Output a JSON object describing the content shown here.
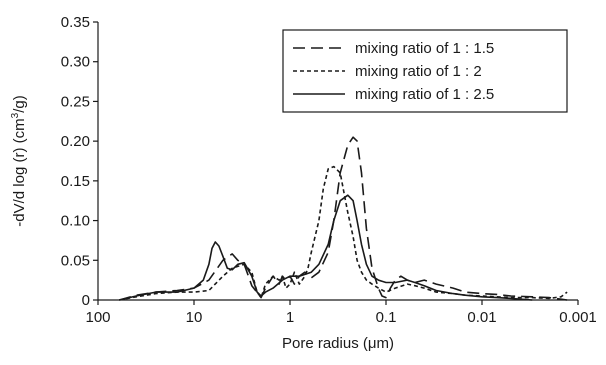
{
  "chart_data": {
    "type": "line",
    "title": "",
    "xlabel": "Pore radius (μm)",
    "ylabel": "-dV/d log (r) (cm³/g)",
    "ylabel_parts": {
      "prefix": "-dV/d log (r) (cm",
      "sup": "3",
      "suffix": "/g)"
    },
    "x_scale": "log",
    "x_reversed": true,
    "xlim": [
      100,
      0.001
    ],
    "ylim": [
      0,
      0.35
    ],
    "x_ticks": [
      100,
      10,
      1,
      0.1,
      0.01,
      0.001
    ],
    "x_tick_labels": [
      "100",
      "10",
      "1",
      "0.1",
      "0.01",
      "0.001"
    ],
    "y_ticks": [
      0,
      0.05,
      0.1,
      0.15,
      0.2,
      0.25,
      0.3,
      0.35
    ],
    "y_tick_labels": [
      "0",
      "0.05",
      "0.10",
      "0.15",
      "0.20",
      "0.25",
      "0.30",
      "0.35"
    ],
    "grid": false,
    "legend_position": "top-right",
    "series": [
      {
        "name": "mixing ratio of 1 : 1.5",
        "line_style": "long-dash",
        "color": "#1a1a1a",
        "x": [
          60,
          40,
          25,
          15,
          10,
          7,
          5,
          4,
          3.5,
          3,
          2.5,
          2,
          1.8,
          1.5,
          1.3,
          1.2,
          1.1,
          1,
          0.9,
          0.8,
          0.7,
          0.6,
          0.5,
          0.4,
          0.35,
          0.3,
          0.25,
          0.22,
          0.2,
          0.18,
          0.16,
          0.14,
          0.12,
          0.11,
          0.1,
          0.09,
          0.08,
          0.07,
          0.06,
          0.05,
          0.04,
          0.03,
          0.02,
          0.015,
          0.01,
          0.007,
          0.005,
          0.003,
          0.002,
          0.0015,
          0.0013
        ],
        "y": [
          0,
          0.006,
          0.01,
          0.012,
          0.015,
          0.025,
          0.05,
          0.058,
          0.05,
          0.045,
          0.018,
          0.003,
          0.015,
          0.03,
          0.02,
          0.03,
          0.025,
          0.03,
          0.02,
          0.03,
          0.035,
          0.028,
          0.035,
          0.06,
          0.1,
          0.16,
          0.195,
          0.205,
          0.2,
          0.16,
          0.09,
          0.04,
          0.015,
          0.005,
          0.003,
          0.015,
          0.025,
          0.03,
          0.025,
          0.022,
          0.025,
          0.02,
          0.015,
          0.01,
          0.008,
          0.007,
          0.005,
          0.004,
          0.003,
          0.001,
          0
        ]
      },
      {
        "name": "mixing ratio of 1 : 2",
        "line_style": "short-dash",
        "color": "#1a1a1a",
        "x": [
          60,
          40,
          25,
          15,
          10,
          7,
          5,
          4,
          3,
          2.5,
          2.2,
          2,
          1.8,
          1.5,
          1.3,
          1.2,
          1.1,
          1,
          0.9,
          0.8,
          0.7,
          0.65,
          0.6,
          0.5,
          0.45,
          0.4,
          0.35,
          0.3,
          0.25,
          0.22,
          0.2,
          0.18,
          0.16,
          0.14,
          0.12,
          0.1,
          0.08,
          0.06,
          0.05,
          0.04,
          0.03,
          0.02,
          0.015,
          0.01,
          0.007,
          0.005,
          0.003,
          0.002,
          0.0015,
          0.0013
        ],
        "y": [
          0,
          0.004,
          0.008,
          0.01,
          0.01,
          0.012,
          0.03,
          0.04,
          0.045,
          0.035,
          0.01,
          0.003,
          0.02,
          0.03,
          0.025,
          0.03,
          0.015,
          0.02,
          0.035,
          0.02,
          0.03,
          0.04,
          0.06,
          0.1,
          0.14,
          0.165,
          0.168,
          0.16,
          0.11,
          0.08,
          0.05,
          0.035,
          0.025,
          0.02,
          0.015,
          0.01,
          0.015,
          0.02,
          0.018,
          0.015,
          0.01,
          0.008,
          0.006,
          0.005,
          0.004,
          0.003,
          0.003,
          0.002,
          0.004,
          0.01
        ]
      },
      {
        "name": "mixing ratio of 1 : 2.5",
        "line_style": "solid",
        "color": "#1a1a1a",
        "x": [
          60,
          40,
          25,
          15,
          10,
          8,
          7,
          6.5,
          6,
          5.5,
          5,
          4.5,
          4,
          3.5,
          3,
          2.5,
          2.2,
          2,
          1.8,
          1.5,
          1.2,
          1,
          0.8,
          0.6,
          0.5,
          0.4,
          0.35,
          0.3,
          0.25,
          0.22,
          0.2,
          0.18,
          0.16,
          0.14,
          0.12,
          0.1,
          0.08,
          0.06,
          0.05,
          0.04,
          0.03,
          0.02,
          0.015,
          0.01,
          0.007,
          0.005,
          0.003
        ],
        "y": [
          0,
          0.005,
          0.01,
          0.01,
          0.015,
          0.025,
          0.045,
          0.065,
          0.073,
          0.068,
          0.055,
          0.04,
          0.038,
          0.045,
          0.047,
          0.03,
          0.01,
          0.005,
          0.01,
          0.015,
          0.025,
          0.03,
          0.03,
          0.035,
          0.045,
          0.07,
          0.1,
          0.125,
          0.132,
          0.125,
          0.1,
          0.07,
          0.045,
          0.03,
          0.025,
          0.022,
          0.022,
          0.025,
          0.022,
          0.018,
          0.012,
          0.008,
          0.006,
          0.004,
          0.003,
          0.002,
          0
        ]
      }
    ]
  }
}
